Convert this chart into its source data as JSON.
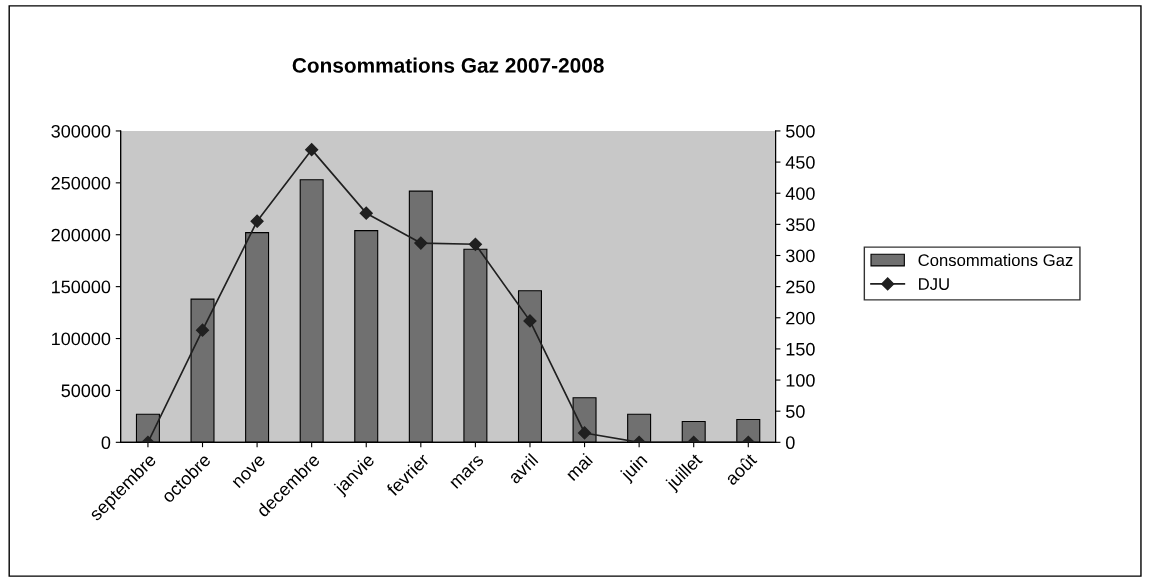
{
  "chart_data": {
    "type": "bar",
    "title": "Consommations Gaz 2007-2008",
    "categories": [
      "septembre",
      "octobre",
      "nove",
      "decembre",
      "janvie",
      "fevrier",
      "mars",
      "avril",
      "mai",
      "juin",
      "juillet",
      "août"
    ],
    "series": [
      {
        "name": "Consommations Gaz",
        "color": "#707070",
        "values": [
          27000,
          138000,
          202000,
          253000,
          204000,
          242000,
          186000,
          146000,
          43000,
          27000,
          20000,
          22000
        ]
      },
      {
        "name": "DJU",
        "type": "line",
        "axis": "y2",
        "color": "#202020",
        "marker": "diamond",
        "values": [
          0,
          180,
          355,
          470,
          368,
          320,
          318,
          195,
          15,
          0,
          0,
          0
        ]
      }
    ],
    "ylim": [
      0,
      300000
    ],
    "yticks": [
      0,
      50000,
      100000,
      150000,
      200000,
      250000,
      300000
    ],
    "y2lim": [
      0,
      500
    ],
    "y2ticks": [
      0,
      50,
      100,
      150,
      200,
      250,
      300,
      350,
      400,
      450,
      500
    ],
    "grid": false,
    "legend": "right"
  }
}
